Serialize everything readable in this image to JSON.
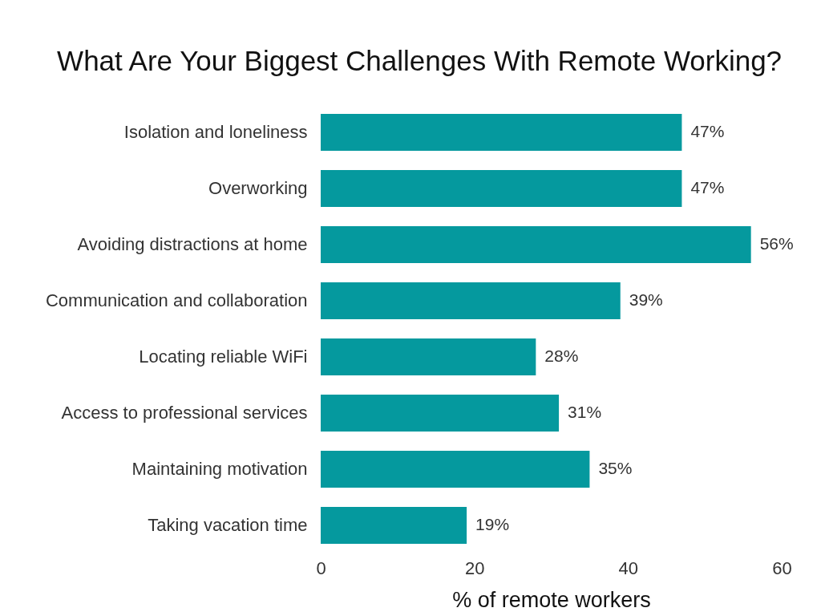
{
  "chart_data": {
    "type": "bar",
    "orientation": "horizontal",
    "title": "What Are Your Biggest Challenges  With Remote Working?",
    "xlabel": "% of remote workers",
    "categories": [
      "Isolation and loneliness",
      "Overworking",
      "Avoiding distractions at home",
      "Communication and collaboration",
      "Locating reliable WiFi",
      "Access to professional services",
      "Maintaining motivation",
      "Taking vacation time"
    ],
    "values": [
      47,
      47,
      56,
      39,
      28,
      31,
      35,
      19
    ],
    "value_labels": [
      "47%",
      "47%",
      "56%",
      "39%",
      "28%",
      "31%",
      "35%",
      "19%"
    ],
    "color": "#05999e",
    "xlim": [
      0,
      60
    ],
    "xticks": [
      0,
      20,
      40,
      60
    ]
  }
}
